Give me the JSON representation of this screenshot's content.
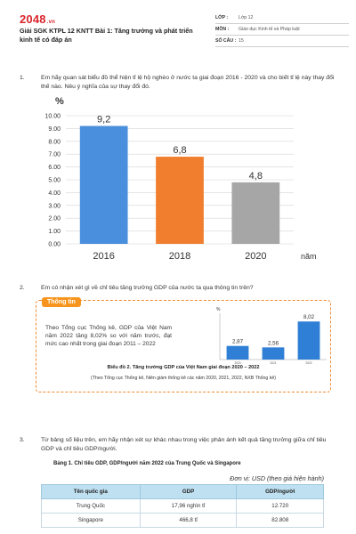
{
  "header": {
    "logo": "2048",
    "logo_suffix": ".vn",
    "title": "Giải SGK KTPL 12 KNTT Bài 1: Tăng trưởng và phát triển kinh tế có đáp án",
    "meta": [
      {
        "key": "LỚP :",
        "value": "Lớp 12"
      },
      {
        "key": "MÔN :",
        "value": "Giáo dục Kinh tế và Pháp luật"
      },
      {
        "key": "SỐ CÂU :",
        "value": "15"
      }
    ]
  },
  "questions": [
    {
      "num": "1.",
      "text": "Em hãy quan sát biểu đồ thể hiện tỉ lệ hộ nghèo ở nước ta giai đoạn 2016 - 2020 và cho biết tỉ lệ này thay đổi thế nào. Nêu ý nghĩa của sự thay đổi đó."
    },
    {
      "num": "2.",
      "text": "Em có nhận xét gì về chỉ tiêu tăng trưởng GDP của nước ta qua thông tin trên?"
    },
    {
      "num": "3.",
      "text": "Từ bảng số liệu trên, em hãy nhận xét sự khác nhau trong việc phản ánh kết quả tăng trưởng giữa chỉ tiêu GDP và chỉ tiêu GDP/người."
    }
  ],
  "chart_data": [
    {
      "type": "bar",
      "ylabel": "%",
      "xlabel": "năm",
      "categories": [
        "2016",
        "2018",
        "2020"
      ],
      "values": [
        9.2,
        6.8,
        4.8
      ],
      "value_labels": [
        "9,2",
        "6,8",
        "4,8"
      ],
      "yticks": [
        "0.00",
        "1.00",
        "2.00",
        "3.00",
        "4.00",
        "5.00",
        "6.00",
        "7.00",
        "8.00",
        "9.00",
        "10.00"
      ],
      "ylim": [
        0,
        10
      ],
      "colors": [
        "#4a8fdd",
        "#f07e2e",
        "#a6a6a6"
      ],
      "grid": true
    },
    {
      "type": "bar",
      "ylabel": "%",
      "categories": [
        "2020",
        "2021",
        "2022"
      ],
      "values": [
        2.87,
        2.56,
        8.02
      ],
      "value_labels": [
        "2,87",
        "2,56",
        "8,02"
      ],
      "ylim": [
        0,
        9
      ],
      "colors": [
        "#2f7fd6",
        "#2f7fd6",
        "#2f7fd6"
      ],
      "title": "Biểu đồ 2. Tăng trưởng GDP của Việt Nam giai đoạn 2020 – 2022",
      "source": "(Theo Tổng cục Thống kê, Niên giám thống kê các năm 2020, 2021, 2022, NXB Thống kê)"
    }
  ],
  "info_box": {
    "tag": "Thông tin",
    "text": "Theo Tổng cục Thống kê, GDP của Việt Nam năm 2022 tăng 8,02% so với năm trước, đạt mức cao nhất trong giai đoạn 2011 – 2022"
  },
  "table": {
    "title": "Bảng 1. Chỉ tiêu GDP, GDP/người năm 2022 của Trung Quốc và Singapore",
    "unit": "Đơn vị: USD (theo giá hiện hành)",
    "headers": [
      "Tên quốc gia",
      "GDP",
      "GDP/người"
    ],
    "rows": [
      [
        "Trung Quốc",
        "17,96 nghìn tỉ",
        "12.720"
      ],
      [
        "Singapore",
        "466,8 tỉ",
        "82.808"
      ]
    ]
  }
}
